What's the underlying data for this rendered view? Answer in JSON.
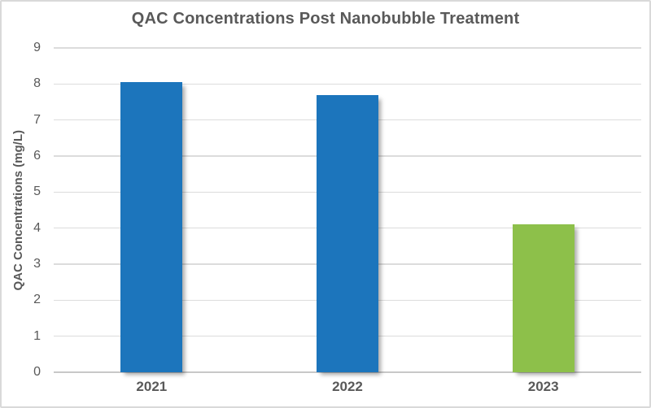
{
  "chart_data": {
    "type": "bar",
    "title": "QAC Concentrations Post Nanobubble Treatment",
    "categories": [
      "2021",
      "2022",
      "2023"
    ],
    "values": [
      8.05,
      7.7,
      4.1
    ],
    "bar_colors": [
      "#1C75BC",
      "#1C75BC",
      "#8DC04A"
    ],
    "xlabel": "",
    "ylabel": "QAC Concentrations (mg/L)",
    "ylim": [
      0,
      9
    ],
    "ytick_step": 1,
    "yticks": [
      0,
      1,
      2,
      3,
      4,
      5,
      6,
      7,
      8,
      9
    ],
    "grid": true,
    "legend": false
  },
  "style": {
    "text_color": "#595959",
    "gridline_color": "#dcdcdc",
    "axis_line_color": "#c8c8c8",
    "frame_border_color": "#d9d9d9",
    "background_color": "#ffffff"
  }
}
